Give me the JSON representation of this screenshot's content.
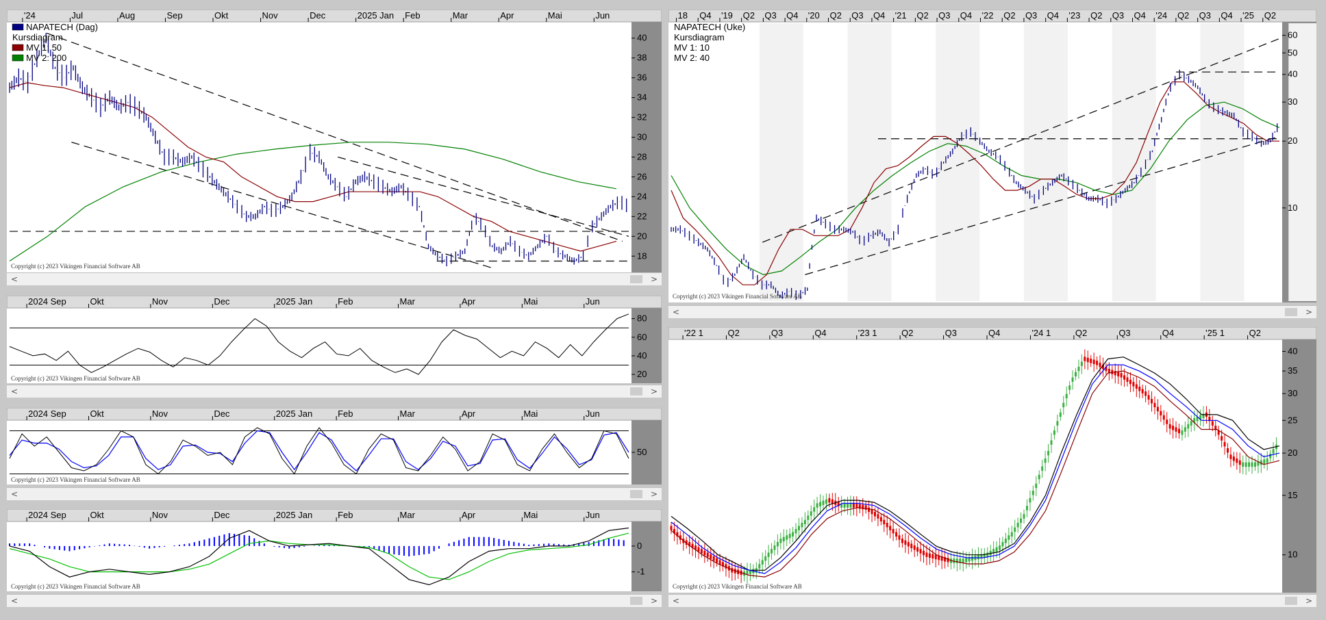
{
  "copyright": "Copyright (c) 2023 Vikingen Financial Software AB",
  "scroll_left": "<",
  "scroll_right": ">",
  "colors": {
    "price": "#000080",
    "mv1": "#8b0000",
    "mv2": "#008000",
    "dashed": "#000000",
    "yaxis_bg": "#8c8c8c",
    "header_bg": "#dcdcdc",
    "up": "#3cb043",
    "down": "#e00000",
    "blue": "#0000ff"
  },
  "chart_data": [
    {
      "id": "daily_price",
      "type": "line",
      "legend": [
        "NAPATECH (Dag)",
        "Kursdiagram",
        "MV 1: 50",
        "MV 2: 200"
      ],
      "x_ticks": [
        "'24",
        "Jul",
        "Aug",
        "Sep",
        "Okt",
        "Nov",
        "Dec",
        "2025 Jan",
        "Feb",
        "Mar",
        "Apr",
        "Mai",
        "Jun"
      ],
      "y_ticks": [
        18,
        20,
        22,
        24,
        26,
        28,
        30,
        32,
        34,
        36,
        38,
        40
      ],
      "ylim": [
        16.5,
        41.5
      ],
      "series": [
        {
          "key": "price",
          "values": [
            35,
            36,
            35.5,
            38,
            40,
            37,
            36,
            37,
            35,
            34,
            33,
            34,
            33,
            33.5,
            33,
            32,
            30,
            28,
            28,
            27.5,
            28,
            27,
            26,
            25,
            24,
            23,
            22,
            22,
            23,
            22.5,
            23,
            24,
            26,
            28.5,
            28,
            26,
            25,
            24,
            25.5,
            26,
            25.5,
            25,
            24.5,
            25,
            24,
            23,
            19,
            18,
            17.5,
            18,
            18.5,
            22,
            21,
            19,
            18.5,
            19.5,
            18.5,
            18,
            19,
            20,
            18.5,
            18,
            17.5,
            18,
            21,
            22,
            23,
            23.5,
            23
          ]
        },
        {
          "key": "mv1",
          "values": [
            35,
            35.5,
            35.2,
            35,
            34.5,
            34,
            33.5,
            33,
            32,
            30.5,
            29,
            28,
            27.5,
            26,
            25,
            24,
            23.5,
            23.5,
            24,
            24.5,
            24.5,
            24.5,
            24.5,
            24.5,
            24,
            23,
            22,
            21.5,
            20.5,
            20,
            19.5,
            19,
            18.5,
            19,
            19.5
          ]
        },
        {
          "key": "mv2",
          "values": [
            17.5,
            20,
            23,
            25,
            26.5,
            27.5,
            28.3,
            28.8,
            29.2,
            29.5,
            29.5,
            29.3,
            28.8,
            27.8,
            26.5,
            25.5,
            24.8
          ]
        }
      ],
      "lines": [
        {
          "points": [
            [
              0.06,
              40.5
            ],
            [
              0.99,
              19.5
            ]
          ]
        },
        {
          "points": [
            [
              0.1,
              29.5
            ],
            [
              0.78,
              16.8
            ]
          ]
        },
        {
          "points": [
            [
              0.0,
              20.5
            ],
            [
              1.0,
              20.5
            ]
          ]
        },
        {
          "points": [
            [
              0.69,
              17.5
            ],
            [
              1.0,
              17.5
            ]
          ]
        },
        {
          "points": [
            [
              0.53,
              28.0
            ],
            [
              1.0,
              20.0
            ]
          ]
        }
      ]
    },
    {
      "id": "rsi",
      "type": "line",
      "x_ticks": [
        "2024 Sep",
        "Okt",
        "Nov",
        "Dec",
        "2025 Jan",
        "Feb",
        "Mar",
        "Apr",
        "Mai",
        "Jun"
      ],
      "y_ticks": [
        20,
        40,
        60,
        80
      ],
      "ylim": [
        12,
        90
      ],
      "hlines": [
        30,
        70
      ],
      "series": [
        {
          "key": "rsi",
          "values": [
            50,
            45,
            40,
            42,
            35,
            45,
            30,
            22,
            28,
            35,
            42,
            48,
            44,
            35,
            28,
            38,
            35,
            30,
            40,
            55,
            68,
            80,
            72,
            55,
            45,
            38,
            48,
            55,
            42,
            40,
            48,
            35,
            28,
            22,
            26,
            20,
            35,
            55,
            68,
            62,
            58,
            48,
            38,
            45,
            40,
            55,
            48,
            38,
            52,
            40,
            55,
            68,
            80,
            85
          ]
        }
      ]
    },
    {
      "id": "stochastic",
      "type": "line",
      "x_ticks": [
        "2024 Sep",
        "Okt",
        "Nov",
        "Dec",
        "2025 Jan",
        "Feb",
        "Mar",
        "Apr",
        "Mai",
        "Jun"
      ],
      "y_ticks": [
        50
      ],
      "ylim": [
        0,
        100
      ],
      "hlines": [
        15,
        85
      ],
      "series": [
        {
          "key": "fast",
          "values": [
            40,
            80,
            60,
            75,
            50,
            25,
            20,
            30,
            55,
            85,
            75,
            30,
            15,
            35,
            70,
            60,
            45,
            50,
            30,
            75,
            90,
            80,
            40,
            15,
            60,
            90,
            65,
            30,
            15,
            55,
            80,
            70,
            25,
            20,
            45,
            75,
            55,
            20,
            35,
            80,
            70,
            30,
            20,
            55,
            80,
            50,
            25,
            40,
            85,
            80,
            40
          ]
        },
        {
          "key": "slow",
          "values": [
            45,
            70,
            65,
            65,
            55,
            35,
            25,
            28,
            45,
            75,
            75,
            40,
            22,
            30,
            60,
            62,
            50,
            48,
            35,
            65,
            85,
            82,
            50,
            22,
            50,
            82,
            70,
            38,
            20,
            45,
            72,
            72,
            35,
            22,
            40,
            68,
            60,
            28,
            32,
            70,
            72,
            38,
            24,
            48,
            75,
            56,
            30,
            38,
            78,
            82,
            50
          ]
        }
      ]
    },
    {
      "id": "macd",
      "type": "line",
      "x_ticks": [
        "2024 Sep",
        "Okt",
        "Nov",
        "Dec",
        "2025 Jan",
        "Feb",
        "Mar",
        "Apr",
        "Mai",
        "Jun"
      ],
      "y_ticks": [
        0,
        -1
      ],
      "ylim": [
        -1.7,
        0.9
      ],
      "series": [
        {
          "key": "macd",
          "values": [
            0,
            -0.2,
            -0.8,
            -1.2,
            -1.0,
            -0.9,
            -1.0,
            -1.1,
            -1.0,
            -0.8,
            -0.4,
            0.3,
            0.6,
            0.2,
            0.0,
            0.05,
            0.1,
            0.0,
            -0.1,
            -0.7,
            -1.3,
            -1.5,
            -1.2,
            -0.6,
            -0.2,
            -0.1,
            -0.1,
            0.0,
            0.0,
            0.2,
            0.6,
            0.7
          ]
        },
        {
          "key": "signal",
          "values": [
            -0.1,
            -0.3,
            -0.5,
            -0.8,
            -1.0,
            -1.0,
            -1.0,
            -1.0,
            -1.0,
            -0.9,
            -0.7,
            -0.3,
            0.1,
            0.2,
            0.1,
            0.05,
            0.05,
            0.0,
            -0.05,
            -0.3,
            -0.8,
            -1.2,
            -1.3,
            -1.0,
            -0.6,
            -0.3,
            -0.15,
            -0.1,
            -0.05,
            0.05,
            0.3,
            0.5
          ]
        },
        {
          "key": "hist",
          "values": [
            0.1,
            0.1,
            -0.1,
            -0.2,
            -0.05,
            0.1,
            0.05,
            -0.1,
            0.0,
            0.1,
            0.3,
            0.5,
            0.4,
            0.0,
            -0.1,
            0.0,
            0.05,
            0.0,
            -0.05,
            -0.3,
            -0.4,
            -0.3,
            0.1,
            0.35,
            0.35,
            0.2,
            0.05,
            0.1,
            0.05,
            0.15,
            0.3,
            0.2
          ]
        }
      ]
    },
    {
      "id": "weekly_price",
      "type": "line",
      "log_scale": true,
      "legend": [
        "NAPATECH (Uke)",
        "Kursdiagram",
        "MV 1: 10",
        "MV 2: 40"
      ],
      "x_ticks": [
        "18",
        "Q4",
        "'19",
        "Q2",
        "Q3",
        "Q4",
        "'20",
        "Q2",
        "Q3",
        "Q4",
        "'21",
        "Q2",
        "Q3",
        "Q4",
        "'22",
        "Q2",
        "Q3",
        "Q4",
        "'23",
        "Q2",
        "Q3",
        "Q4",
        "'24",
        "Q2",
        "Q3",
        "Q4",
        "'25",
        "Q2"
      ],
      "y_ticks": [
        10,
        20,
        30,
        40,
        50,
        60
      ],
      "ylim": [
        3.8,
        68
      ],
      "series": [
        {
          "key": "price",
          "values": [
            8,
            8,
            7.5,
            7,
            6.5,
            5.5,
            4.5,
            5,
            6,
            5,
            4.5,
            4.5,
            4,
            4.2,
            4,
            4.3,
            9,
            8.5,
            8,
            8,
            7.8,
            7,
            7.5,
            7.8,
            7,
            8,
            11,
            14,
            15,
            14,
            16,
            18,
            21,
            22,
            20,
            18,
            17,
            15,
            13,
            12,
            11,
            12,
            13,
            14,
            13,
            12,
            11,
            11,
            10.5,
            11,
            12,
            13,
            15,
            18,
            25,
            35,
            40,
            38,
            35,
            30,
            28,
            27,
            26,
            22,
            21,
            19.5,
            20,
            24
          ]
        },
        {
          "key": "mv1",
          "values": [
            12,
            9,
            8,
            7,
            6,
            5,
            4.5,
            4.5,
            5,
            6.5,
            8,
            8,
            7.5,
            7.5,
            7.5,
            8,
            10,
            13,
            15,
            15.5,
            17,
            19,
            21,
            21,
            19.5,
            17.5,
            15.5,
            13.5,
            12,
            12,
            12.5,
            13.5,
            13.5,
            12.5,
            11.5,
            11,
            11,
            11.5,
            13,
            16,
            22,
            30,
            37,
            37,
            33,
            29,
            27,
            25.5,
            24,
            21.5,
            20,
            20
          ]
        },
        {
          "key": "mv2",
          "values": [
            14,
            10,
            8,
            6.5,
            5.5,
            5,
            5.2,
            6,
            7,
            8,
            10,
            12,
            14,
            16,
            18,
            19.5,
            19,
            17.5,
            15.5,
            14,
            13.5,
            13.5,
            13,
            12,
            11.5,
            12,
            15,
            20,
            25,
            29,
            30,
            28,
            25,
            23
          ]
        }
      ],
      "lines": [
        {
          "points": [
            [
              0.15,
              7.0
            ],
            [
              1.0,
              58.0
            ]
          ]
        },
        {
          "points": [
            [
              0.22,
              5.0
            ],
            [
              1.0,
              21.0
            ]
          ]
        },
        {
          "points": [
            [
              0.34,
              20.5
            ],
            [
              1.0,
              20.5
            ]
          ]
        },
        {
          "points": [
            [
              0.83,
              41.0
            ],
            [
              1.0,
              41.0
            ]
          ]
        }
      ]
    },
    {
      "id": "weekly_heikin",
      "type": "bar",
      "log_scale": true,
      "x_ticks": [
        "'22 1",
        "Q2",
        "Q3",
        "Q4",
        "'23 1",
        "Q2",
        "Q3",
        "Q4",
        "'24 1",
        "Q2",
        "Q3",
        "Q4",
        "'25 1",
        "Q2"
      ],
      "y_ticks": [
        10,
        15,
        20,
        25,
        30,
        35,
        40
      ],
      "ylim": [
        7.8,
        43
      ],
      "series": [
        {
          "key": "candles",
          "values": [
            12,
            11,
            10.5,
            10,
            9.5,
            9,
            8.8,
            9,
            10,
            11,
            11.5,
            12.5,
            14,
            14.5,
            14,
            14,
            13.8,
            13,
            12,
            11,
            10.5,
            10,
            9.8,
            9.6,
            9.6,
            9.8,
            10,
            10.5,
            11.5,
            13,
            16,
            20,
            26,
            33,
            38,
            37,
            35,
            34,
            32,
            30,
            27,
            24,
            23,
            25,
            26,
            23,
            19.5,
            18.5,
            18.5,
            19,
            21.5
          ]
        },
        {
          "key": "ma_black",
          "values": [
            13,
            12,
            11,
            10,
            9.5,
            9,
            9,
            9.8,
            11,
            12.5,
            14,
            14.5,
            14.5,
            14.3,
            13.5,
            12.5,
            11.5,
            10.6,
            10.2,
            10,
            10,
            10.2,
            10.8,
            12.5,
            15,
            20,
            26,
            33,
            38,
            38.5,
            36.5,
            34.5,
            32,
            29,
            26,
            26,
            25,
            22,
            20.5,
            21
          ]
        },
        {
          "key": "ma_blue",
          "values": [
            12.5,
            11.5,
            10.5,
            9.8,
            9.3,
            9,
            8.8,
            9.5,
            10.5,
            12,
            13.5,
            14.2,
            14.2,
            14,
            13.2,
            12.2,
            11.2,
            10.4,
            10,
            9.8,
            9.8,
            10,
            10.6,
            12.2,
            14.5,
            19,
            25,
            32,
            36.5,
            36.5,
            35,
            33,
            30,
            27.5,
            25,
            25,
            23.5,
            21,
            19.5,
            20
          ]
        },
        {
          "key": "ma_red",
          "values": [
            11.8,
            10.8,
            10,
            9.4,
            9,
            8.7,
            8.6,
            9,
            10,
            11.5,
            12.8,
            13.5,
            13.8,
            13.6,
            12.8,
            11.8,
            10.8,
            10,
            9.6,
            9.4,
            9.4,
            9.6,
            10.2,
            11.5,
            13.5,
            17.5,
            23,
            30,
            34.5,
            35,
            33.5,
            31.5,
            28.5,
            26,
            23.5,
            23.5,
            22,
            19.5,
            18.5,
            19
          ]
        }
      ]
    }
  ]
}
